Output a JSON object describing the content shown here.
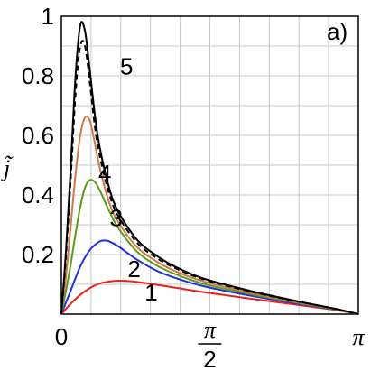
{
  "chart_data": {
    "type": "line",
    "panel_label": "a)",
    "ylabel": "j̃",
    "xlim": [
      0,
      3.1416
    ],
    "ylim": [
      0,
      1
    ],
    "grid": true,
    "x_ticks": [
      {
        "value": 0,
        "label": "0"
      },
      {
        "value": 1.5708,
        "label_num": "π",
        "label_den": "2"
      },
      {
        "value": 3.1416,
        "label": "π"
      }
    ],
    "y_ticks": [
      {
        "value": 0.2,
        "label": "0.2"
      },
      {
        "value": 0.4,
        "label": "0.4"
      },
      {
        "value": 0.6,
        "label": "0.6"
      },
      {
        "value": 0.8,
        "label": "0.8"
      },
      {
        "value": 1.0,
        "label": "1"
      }
    ],
    "series": [
      {
        "name": "1",
        "color": "#e8231f",
        "dash": false,
        "x": [
          0,
          0.05,
          0.1,
          0.2,
          0.3,
          0.4,
          0.5,
          0.6,
          0.7,
          0.8,
          1.0,
          1.2,
          1.5,
          2.0,
          2.5,
          2.9,
          3.1416
        ],
        "y": [
          0,
          0.018,
          0.035,
          0.065,
          0.087,
          0.102,
          0.109,
          0.112,
          0.111,
          0.108,
          0.099,
          0.089,
          0.074,
          0.052,
          0.031,
          0.014,
          0.0
        ]
      },
      {
        "name": "2",
        "color": "#1e2ee0",
        "dash": false,
        "x": [
          0,
          0.05,
          0.1,
          0.2,
          0.3,
          0.4,
          0.45,
          0.5,
          0.6,
          0.7,
          0.8,
          1.0,
          1.2,
          1.5,
          2.0,
          2.5,
          2.9,
          3.1416
        ],
        "y": [
          0,
          0.04,
          0.08,
          0.16,
          0.215,
          0.243,
          0.247,
          0.245,
          0.228,
          0.205,
          0.183,
          0.147,
          0.122,
          0.094,
          0.062,
          0.035,
          0.015,
          0.0
        ]
      },
      {
        "name": "3",
        "color": "#5e9a1a",
        "dash": false,
        "x": [
          0,
          0.05,
          0.1,
          0.15,
          0.2,
          0.25,
          0.3,
          0.35,
          0.4,
          0.5,
          0.6,
          0.8,
          1.0,
          1.2,
          1.5,
          2.0,
          2.5,
          2.9,
          3.1416
        ],
        "y": [
          0,
          0.08,
          0.17,
          0.27,
          0.36,
          0.425,
          0.45,
          0.445,
          0.42,
          0.35,
          0.29,
          0.21,
          0.165,
          0.135,
          0.102,
          0.067,
          0.038,
          0.016,
          0.0
        ]
      },
      {
        "name": "4",
        "color": "#cc7a4a",
        "dash": false,
        "x": [
          0,
          0.05,
          0.1,
          0.15,
          0.2,
          0.25,
          0.3,
          0.35,
          0.4,
          0.5,
          0.6,
          0.8,
          1.0,
          1.2,
          1.5,
          2.0,
          2.5,
          2.9,
          3.1416
        ],
        "y": [
          0,
          0.13,
          0.3,
          0.47,
          0.6,
          0.66,
          0.65,
          0.58,
          0.5,
          0.38,
          0.31,
          0.225,
          0.178,
          0.145,
          0.11,
          0.072,
          0.04,
          0.017,
          0.0
        ]
      },
      {
        "name": "5",
        "color": "#000000",
        "dash": true,
        "x": [
          0,
          0.05,
          0.1,
          0.15,
          0.2,
          0.25,
          0.3,
          0.35,
          0.4,
          0.5,
          0.6,
          0.8,
          1.0,
          1.2,
          1.5,
          2.0,
          2.5,
          2.9,
          3.1416
        ],
        "y": [
          0,
          0.2,
          0.46,
          0.74,
          0.9,
          0.9,
          0.78,
          0.64,
          0.54,
          0.41,
          0.33,
          0.24,
          0.19,
          0.155,
          0.117,
          0.076,
          0.042,
          0.018,
          0.0
        ]
      },
      {
        "name": "",
        "color": "#000000",
        "dash": false,
        "x": [
          0,
          0.05,
          0.1,
          0.15,
          0.2,
          0.25,
          0.3,
          0.35,
          0.4,
          0.5,
          0.6,
          0.8,
          1.0,
          1.2,
          1.5,
          2.0,
          2.5,
          2.9,
          3.1416
        ],
        "y": [
          0,
          0.22,
          0.5,
          0.8,
          0.97,
          0.95,
          0.82,
          0.68,
          0.57,
          0.43,
          0.345,
          0.25,
          0.198,
          0.16,
          0.12,
          0.078,
          0.043,
          0.018,
          0.0
        ]
      }
    ],
    "curve_labels": [
      {
        "text": "1",
        "x": 0.95,
        "y": 0.045
      },
      {
        "text": "2",
        "x": 0.77,
        "y": 0.125
      },
      {
        "text": "3",
        "x": 0.58,
        "y": 0.295
      },
      {
        "text": "4",
        "x": 0.46,
        "y": 0.445
      },
      {
        "text": "5",
        "x": 0.69,
        "y": 0.805
      }
    ]
  }
}
